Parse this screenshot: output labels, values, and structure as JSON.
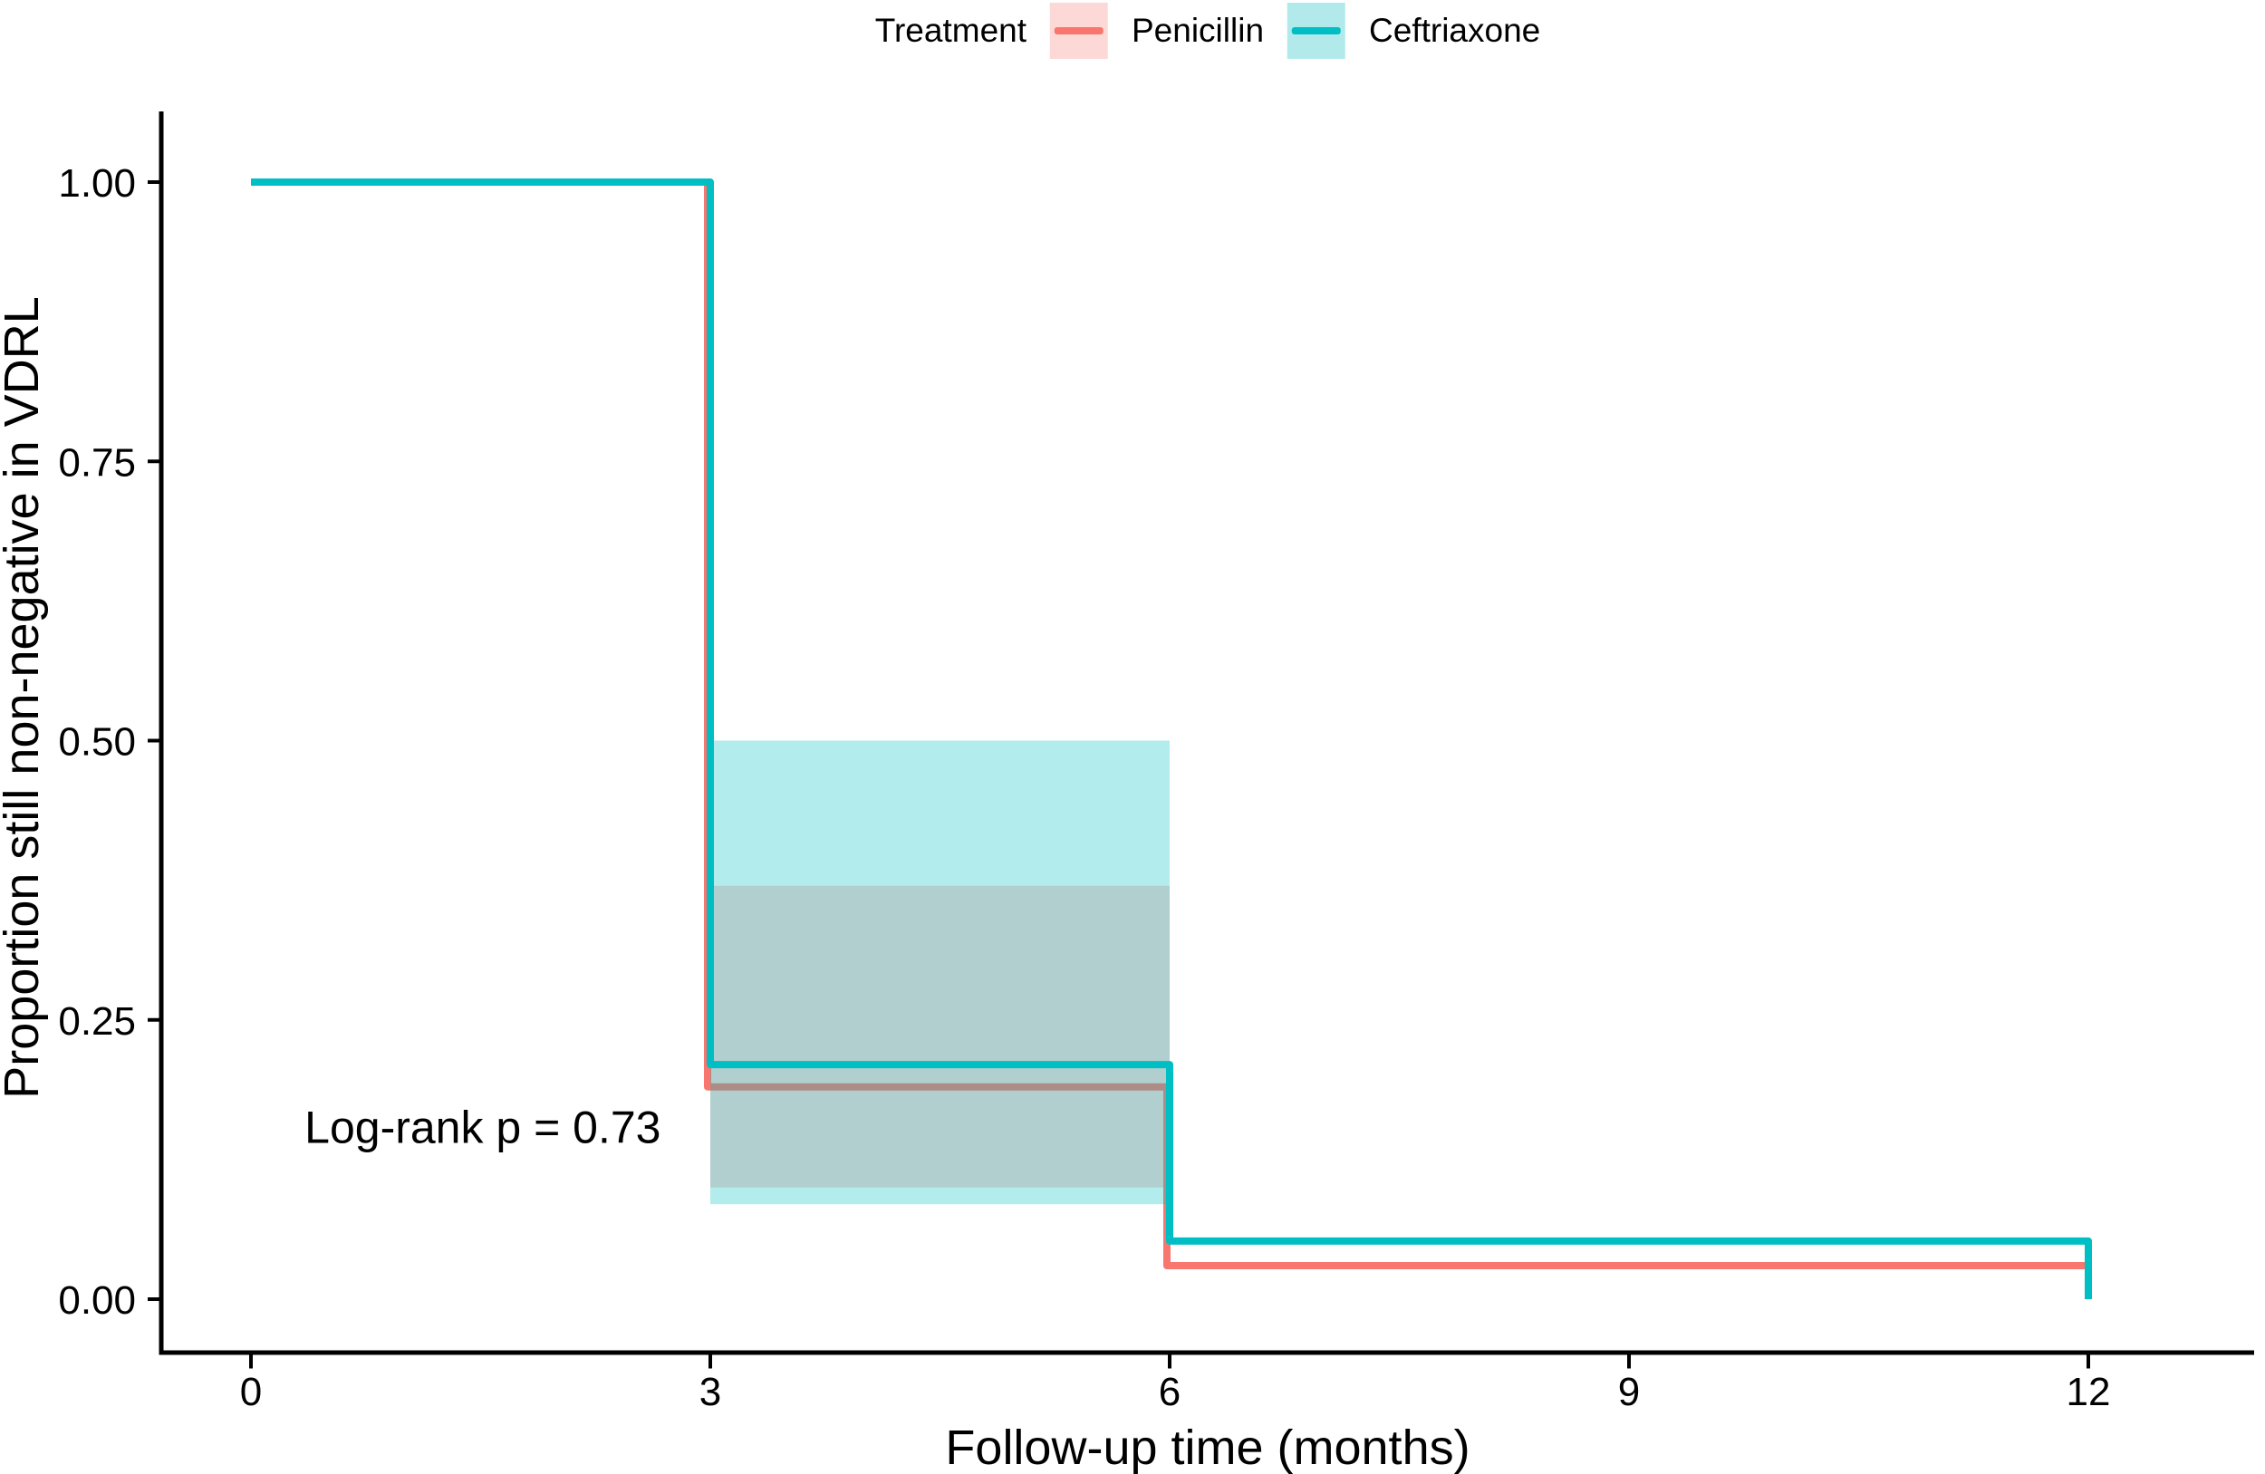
{
  "legend": {
    "title": "Treatment",
    "items": [
      {
        "label": "Penicillin",
        "line_color": "#F8766D",
        "fill_color": "#FCD9D6"
      },
      {
        "label": "Ceftriaxone",
        "line_color": "#00BFC4",
        "fill_color": "#B2EAEC"
      }
    ]
  },
  "chart_data": {
    "type": "line",
    "subtype": "kaplan-meier-step",
    "title": "",
    "xlabel": "Follow-up time (months)",
    "ylabel": "Proportion still non-negative in VDRL",
    "xlim": [
      0,
      12
    ],
    "ylim": [
      0,
      1
    ],
    "grid": false,
    "legend_position": "top",
    "x_tick_values": [
      0,
      3,
      6,
      9,
      12
    ],
    "x_tick_labels": [
      "0",
      "3",
      "6",
      "9",
      "12"
    ],
    "y_tick_values": [
      0,
      0.25,
      0.5,
      0.75,
      1
    ],
    "y_tick_labels": [
      "0.00",
      "0.25",
      "0.50",
      "0.75",
      "1.00"
    ],
    "annotation": {
      "text": "Log-rank p = 0.73",
      "x": 0.35,
      "y": 0.14
    },
    "series": [
      {
        "name": "Penicillin",
        "color": "#F8766D",
        "points": [
          [
            0,
            1.0
          ],
          [
            3,
            0.19
          ],
          [
            6,
            0.03
          ],
          [
            12,
            0.03
          ]
        ],
        "terminal_drop": false,
        "ci": {
          "x_start": 3,
          "x_end": 6,
          "y_low": 0.1,
          "y_high": 0.37,
          "opacity": 0.3
        }
      },
      {
        "name": "Ceftriaxone",
        "color": "#00BFC4",
        "points": [
          [
            0,
            1.0
          ],
          [
            3,
            0.21
          ],
          [
            6,
            0.052
          ],
          [
            12,
            0.0
          ]
        ],
        "terminal_drop": true,
        "ci": {
          "x_start": 3,
          "x_end": 6,
          "y_low": 0.085,
          "y_high": 0.5,
          "opacity": 0.3
        }
      }
    ]
  },
  "colors": {
    "axis": "#000000",
    "text": "#000000",
    "background": "#FFFFFF"
  }
}
